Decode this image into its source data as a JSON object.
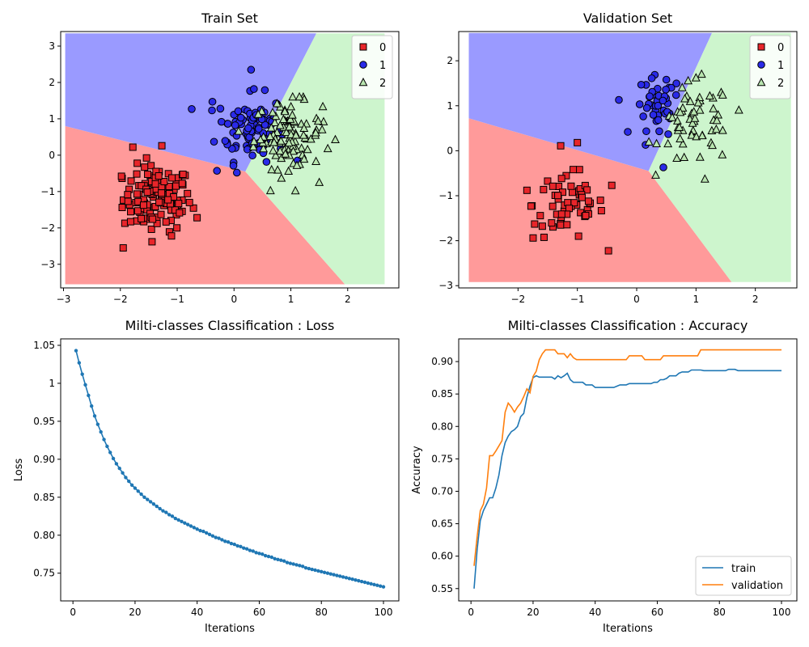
{
  "figure": {
    "colors": {
      "region_0": "#ff9a9a",
      "region_1": "#9a9aff",
      "region_2": "#cdf5cd",
      "class_0": "#e8252a",
      "class_1": "#2a2ae8",
      "class_2": "#b9e6b0",
      "train_line": "#1f77b4",
      "validation_line": "#ff7f0e"
    }
  },
  "chart_data": [
    {
      "id": "train-set",
      "type": "scatter",
      "title": "Train Set",
      "xlim": [
        -3.05,
        2.9
      ],
      "ylim": [
        -3.65,
        3.4
      ],
      "xticks": [
        -3,
        -2,
        -1,
        0,
        1,
        2
      ],
      "yticks": [
        -3,
        -2,
        -1,
        0,
        1,
        2,
        3
      ],
      "regions": {
        "extent_x": [
          -2.97,
          2.65
        ],
        "extent_y": [
          -3.55,
          3.35
        ],
        "junction": [
          0.2,
          -0.45
        ],
        "boundary_0_1_end": [
          -2.97,
          0.8
        ],
        "boundary_1_2_end": [
          1.45,
          3.35
        ],
        "boundary_0_2_end": [
          1.95,
          -3.55
        ]
      },
      "legend": {
        "position": "top-right",
        "labels": [
          "0",
          "1",
          "2"
        ]
      },
      "clusters": [
        {
          "label": "0",
          "marker": "square",
          "center": [
            -1.35,
            -1.2
          ],
          "spread": [
            0.3,
            0.45
          ],
          "count": 120,
          "outliers": [
            [
              -1.78,
              0.22
            ],
            [
              -1.27,
              0.26
            ],
            [
              -1.95,
              -2.55
            ],
            [
              -1.98,
              -0.58
            ],
            [
              -0.65,
              -1.72
            ],
            [
              -1.1,
              -2.22
            ]
          ]
        },
        {
          "label": "1",
          "marker": "circle",
          "center": [
            0.3,
            0.75
          ],
          "spread": [
            0.3,
            0.45
          ],
          "count": 90,
          "outliers": [
            [
              0.3,
              2.35
            ],
            [
              -0.38,
              1.47
            ],
            [
              -0.3,
              -0.43
            ],
            [
              0.05,
              -0.48
            ],
            [
              0.35,
              1.82
            ]
          ]
        },
        {
          "label": "2",
          "marker": "triangle",
          "center": [
            0.95,
            0.55
          ],
          "spread": [
            0.3,
            0.45
          ],
          "count": 100,
          "outliers": [
            [
              1.5,
              -0.75
            ],
            [
              1.08,
              -0.98
            ],
            [
              1.65,
              0.18
            ],
            [
              1.55,
              0.7
            ],
            [
              1.15,
              1.6
            ]
          ]
        }
      ]
    },
    {
      "id": "validation-set",
      "type": "scatter",
      "title": "Validation Set",
      "xlim": [
        -3.0,
        2.7
      ],
      "ylim": [
        -3.05,
        2.65
      ],
      "xticks": [
        -2,
        -1,
        0,
        1,
        2
      ],
      "yticks": [
        -3,
        -2,
        -1,
        0,
        1,
        2
      ],
      "regions": {
        "extent_x": [
          -2.83,
          2.6
        ],
        "extent_y": [
          -2.92,
          2.62
        ],
        "junction": [
          0.2,
          -0.45
        ],
        "boundary_0_1_end": [
          -2.83,
          0.72
        ],
        "boundary_1_2_end": [
          1.27,
          2.62
        ],
        "boundary_0_2_end": [
          1.6,
          -2.92
        ]
      },
      "legend": {
        "position": "top-right",
        "labels": [
          "0",
          "1",
          "2"
        ]
      },
      "clusters": [
        {
          "label": "0",
          "marker": "square",
          "center": [
            -1.15,
            -1.2
          ],
          "spread": [
            0.3,
            0.4
          ],
          "count": 60,
          "outliers": [
            [
              -1.0,
              0.18
            ],
            [
              -1.85,
              -0.88
            ],
            [
              -0.42,
              -0.77
            ],
            [
              -1.72,
              -1.63
            ],
            [
              -0.98,
              -1.9
            ]
          ]
        },
        {
          "label": "1",
          "marker": "circle",
          "center": [
            0.35,
            0.95
          ],
          "spread": [
            0.2,
            0.35
          ],
          "count": 40,
          "outliers": [
            [
              -0.3,
              1.13
            ],
            [
              -0.15,
              0.42
            ],
            [
              0.45,
              -0.37
            ],
            [
              0.15,
              0.13
            ],
            [
              0.5,
              1.58
            ]
          ]
        },
        {
          "label": "2",
          "marker": "triangle",
          "center": [
            1.0,
            0.6
          ],
          "spread": [
            0.3,
            0.45
          ],
          "count": 55,
          "outliers": [
            [
              1.15,
              -0.63
            ],
            [
              0.8,
              -0.15
            ],
            [
              1.45,
              0.45
            ],
            [
              1.0,
              1.62
            ]
          ]
        }
      ]
    },
    {
      "id": "loss",
      "type": "line",
      "title": "Milti-classes Classification : Loss",
      "xlabel": "Iterations",
      "ylabel": "Loss",
      "xlim": [
        -3.95,
        104.95
      ],
      "ylim": [
        0.7135,
        1.0585
      ],
      "xticks": [
        0,
        20,
        40,
        60,
        80,
        100
      ],
      "yticks": [
        0.75,
        0.8,
        0.85,
        0.9,
        0.95,
        1.0,
        1.05
      ],
      "markers": true,
      "series": [
        {
          "name": "loss",
          "x_start": 1,
          "values": [
            1.043,
            1.027,
            1.012,
            0.998,
            0.984,
            0.97,
            0.957,
            0.946,
            0.936,
            0.926,
            0.917,
            0.909,
            0.901,
            0.894,
            0.888,
            0.882,
            0.876,
            0.871,
            0.866,
            0.862,
            0.858,
            0.854,
            0.85,
            0.847,
            0.844,
            0.841,
            0.838,
            0.835,
            0.832,
            0.83,
            0.827,
            0.825,
            0.822,
            0.82,
            0.818,
            0.816,
            0.814,
            0.812,
            0.81,
            0.808,
            0.806,
            0.805,
            0.803,
            0.801,
            0.799,
            0.797,
            0.796,
            0.794,
            0.792,
            0.791,
            0.789,
            0.788,
            0.786,
            0.785,
            0.783,
            0.782,
            0.78,
            0.779,
            0.777,
            0.776,
            0.775,
            0.773,
            0.772,
            0.771,
            0.769,
            0.768,
            0.767,
            0.766,
            0.764,
            0.763,
            0.762,
            0.761,
            0.76,
            0.759,
            0.757,
            0.756,
            0.755,
            0.754,
            0.753,
            0.752,
            0.751,
            0.75,
            0.749,
            0.748,
            0.747,
            0.746,
            0.745,
            0.744,
            0.743,
            0.742,
            0.741,
            0.74,
            0.739,
            0.738,
            0.737,
            0.736,
            0.735,
            0.734,
            0.733,
            0.732
          ]
        }
      ]
    },
    {
      "id": "accuracy",
      "type": "line",
      "title": "Milti-classes Classification : Accuracy",
      "xlabel": "Iterations",
      "ylabel": "Accuracy",
      "xlim": [
        -3.95,
        104.95
      ],
      "ylim": [
        0.531,
        0.935
      ],
      "xticks": [
        0,
        20,
        40,
        60,
        80,
        100
      ],
      "yticks": [
        0.55,
        0.6,
        0.65,
        0.7,
        0.75,
        0.8,
        0.85,
        0.9
      ],
      "legend": {
        "position": "bottom-right"
      },
      "series": [
        {
          "name": "train",
          "x_start": 1,
          "values": [
            0.55,
            0.61,
            0.655,
            0.67,
            0.68,
            0.69,
            0.69,
            0.705,
            0.725,
            0.755,
            0.775,
            0.785,
            0.792,
            0.795,
            0.8,
            0.815,
            0.82,
            0.845,
            0.862,
            0.875,
            0.878,
            0.876,
            0.876,
            0.876,
            0.876,
            0.876,
            0.873,
            0.878,
            0.875,
            0.878,
            0.882,
            0.872,
            0.868,
            0.868,
            0.868,
            0.868,
            0.864,
            0.864,
            0.864,
            0.86,
            0.86,
            0.86,
            0.86,
            0.86,
            0.86,
            0.86,
            0.862,
            0.864,
            0.864,
            0.864,
            0.866,
            0.866,
            0.866,
            0.866,
            0.866,
            0.866,
            0.866,
            0.866,
            0.868,
            0.868,
            0.872,
            0.872,
            0.874,
            0.878,
            0.878,
            0.878,
            0.882,
            0.884,
            0.884,
            0.884,
            0.887,
            0.887,
            0.887,
            0.887,
            0.886,
            0.886,
            0.886,
            0.886,
            0.886,
            0.886,
            0.886,
            0.886,
            0.888,
            0.888,
            0.888,
            0.886,
            0.886,
            0.886,
            0.886,
            0.886,
            0.886,
            0.886,
            0.886,
            0.886,
            0.886,
            0.886,
            0.886,
            0.886,
            0.886,
            0.886
          ]
        },
        {
          "name": "validation",
          "x_start": 1,
          "values": [
            0.585,
            0.63,
            0.67,
            0.68,
            0.705,
            0.755,
            0.755,
            0.762,
            0.77,
            0.778,
            0.822,
            0.836,
            0.83,
            0.822,
            0.83,
            0.836,
            0.846,
            0.858,
            0.852,
            0.877,
            0.885,
            0.903,
            0.912,
            0.918,
            0.918,
            0.918,
            0.918,
            0.912,
            0.912,
            0.912,
            0.906,
            0.912,
            0.906,
            0.903,
            0.903,
            0.903,
            0.903,
            0.903,
            0.903,
            0.903,
            0.903,
            0.903,
            0.903,
            0.903,
            0.903,
            0.903,
            0.903,
            0.903,
            0.903,
            0.903,
            0.909,
            0.909,
            0.909,
            0.909,
            0.909,
            0.903,
            0.903,
            0.903,
            0.903,
            0.903,
            0.903,
            0.909,
            0.909,
            0.909,
            0.909,
            0.909,
            0.909,
            0.909,
            0.909,
            0.909,
            0.909,
            0.909,
            0.909,
            0.918,
            0.918,
            0.918,
            0.918,
            0.918,
            0.918,
            0.918,
            0.918,
            0.918,
            0.918,
            0.918,
            0.918,
            0.918,
            0.918,
            0.918,
            0.918,
            0.918,
            0.918,
            0.918,
            0.918,
            0.918,
            0.918,
            0.918,
            0.918,
            0.918,
            0.918,
            0.918
          ]
        }
      ]
    }
  ]
}
